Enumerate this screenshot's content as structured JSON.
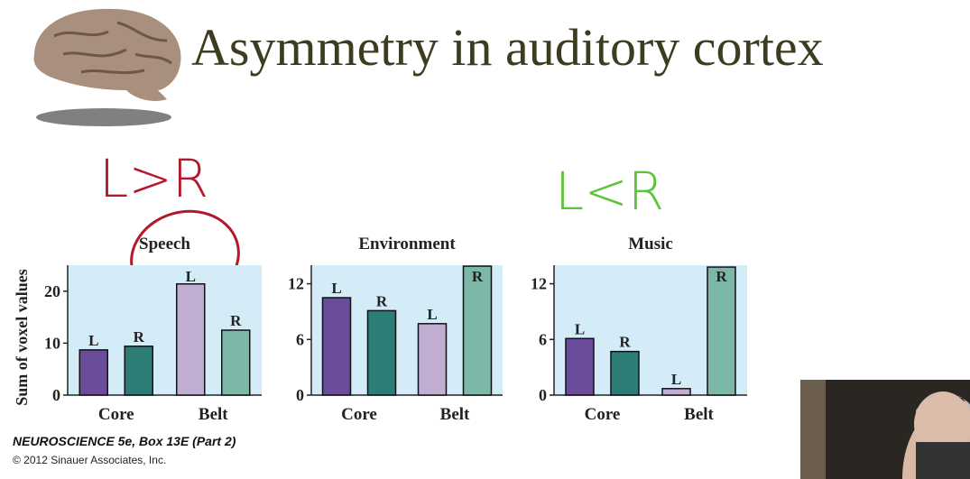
{
  "title": "Asymmetry in auditory cortex",
  "annotations": [
    "L>R",
    "L<R"
  ],
  "caption": {
    "source": "NEUROSCIENCE 5e, Box 13E (Part 2)",
    "copyright": "© 2012 Sinauer Associates, Inc."
  },
  "chart_data": [
    {
      "type": "bar",
      "title": "Speech",
      "ylabel": "Sum of voxel values",
      "categories": [
        "Core",
        "Belt"
      ],
      "series": [
        {
          "name": "L",
          "colors": [
            "#6b4c9a",
            "#c3aed3"
          ],
          "values": [
            8.7,
            21.4
          ]
        },
        {
          "name": "R",
          "colors": [
            "#2b7d76",
            "#7db7a8"
          ],
          "values": [
            9.4,
            12.5
          ]
        }
      ],
      "ylim": [
        0,
        25
      ],
      "yticks": [
        0,
        10,
        20
      ]
    },
    {
      "type": "bar",
      "title": "Environment",
      "categories": [
        "Core",
        "Belt"
      ],
      "series": [
        {
          "name": "L",
          "colors": [
            "#6b4c9a",
            "#c3aed3"
          ],
          "values": [
            10.5,
            7.7
          ]
        },
        {
          "name": "R",
          "colors": [
            "#2b7d76",
            "#7db7a8"
          ],
          "values": [
            9.1,
            13.9
          ]
        }
      ],
      "ylim": [
        0,
        14
      ],
      "yticks": [
        0,
        6,
        12
      ]
    },
    {
      "type": "bar",
      "title": "Music",
      "categories": [
        "Core",
        "Belt"
      ],
      "series": [
        {
          "name": "L",
          "colors": [
            "#6b4c9a",
            "#c3aed3"
          ],
          "values": [
            6.1,
            0.7
          ]
        },
        {
          "name": "R",
          "colors": [
            "#2b7d76",
            "#7db7a8"
          ],
          "values": [
            4.7,
            13.8
          ]
        }
      ],
      "ylim": [
        0,
        14
      ],
      "yticks": [
        0,
        6,
        12
      ]
    }
  ]
}
